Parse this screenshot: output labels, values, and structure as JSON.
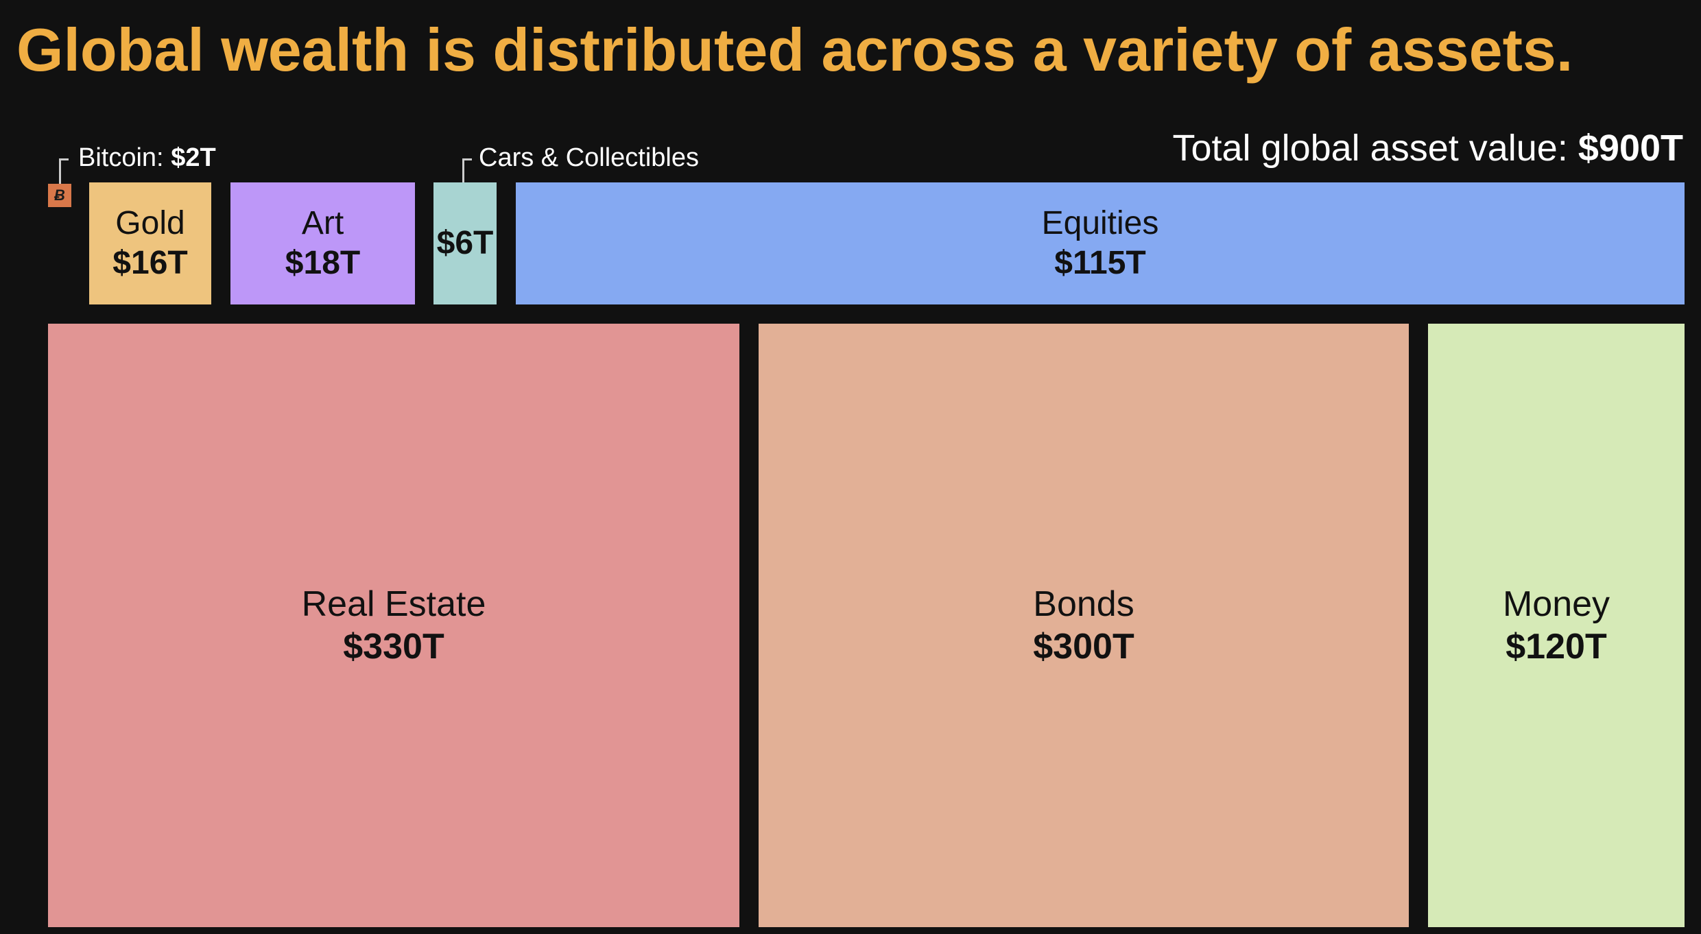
{
  "title": "Global wealth is distributed across a variety of assets.",
  "total": {
    "label": "Total global asset value:",
    "value": "$900T"
  },
  "chart_data": {
    "type": "treemap",
    "title": "Global wealth is distributed across a variety of assets.",
    "unit": "trillion USD",
    "total": 900,
    "items": [
      {
        "name": "Bitcoin",
        "value": 2,
        "value_label": "$2T",
        "color": "#D9784A"
      },
      {
        "name": "Gold",
        "value": 16,
        "value_label": "$16T",
        "color": "#EEC47E"
      },
      {
        "name": "Art",
        "value": 18,
        "value_label": "$18T",
        "color": "#BD97F8"
      },
      {
        "name": "Cars & Collectibles",
        "value": 6,
        "value_label": "$6T",
        "color": "#A8D4D2"
      },
      {
        "name": "Equities",
        "value": 115,
        "value_label": "$115T",
        "color": "#85A9F2"
      },
      {
        "name": "Real Estate",
        "value": 330,
        "value_label": "$330T",
        "color": "#E19594"
      },
      {
        "name": "Bonds",
        "value": 300,
        "value_label": "$300T",
        "color": "#E2B096"
      },
      {
        "name": "Money",
        "value": 120,
        "value_label": "$120T",
        "color": "#D6EAB7"
      }
    ],
    "callouts": {
      "bitcoin": {
        "label": "Bitcoin:",
        "value": "$2T"
      },
      "cars": {
        "label": "Cars & Collectibles"
      }
    },
    "bitcoin_icon": "bitcoin-icon"
  }
}
